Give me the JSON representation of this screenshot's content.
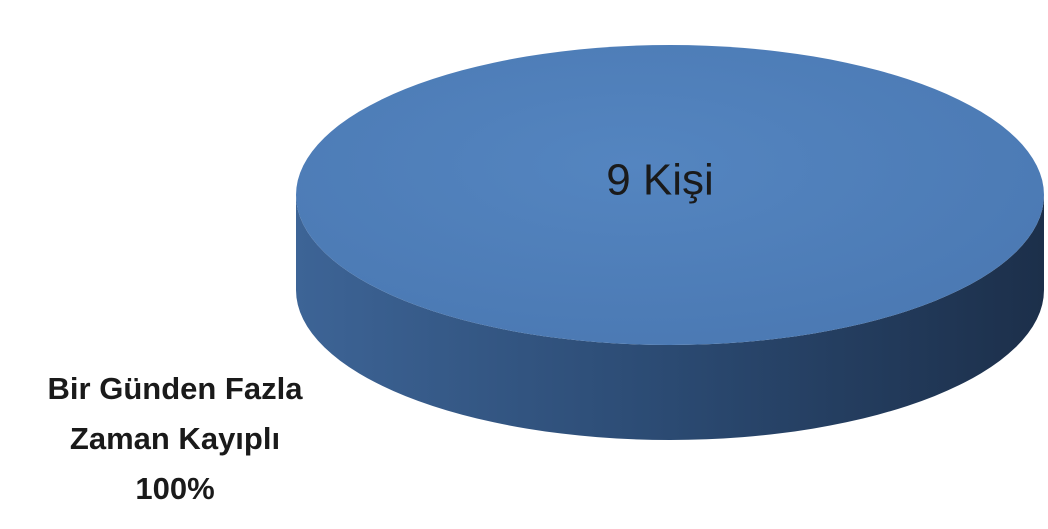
{
  "chart_data": {
    "type": "pie3d",
    "categories": [
      "Bir Günden Fazla Zaman Kayıplı"
    ],
    "values": [
      100
    ],
    "value_labels": [
      "100%"
    ],
    "data_labels": [
      "9 Kişi"
    ],
    "colors": [
      "#4f81bd"
    ]
  }
}
